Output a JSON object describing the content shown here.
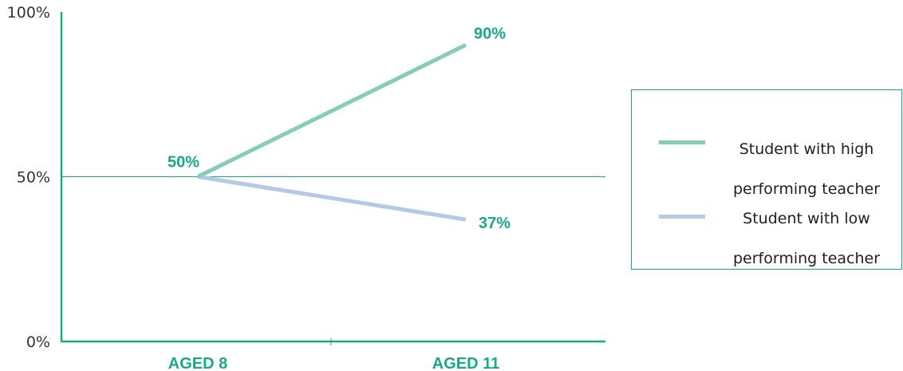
{
  "chart_data": {
    "type": "line",
    "title": "",
    "xlabel": "",
    "ylabel": "",
    "categories": [
      "AGED 8",
      "AGED 11"
    ],
    "ylim": [
      0,
      100
    ],
    "y_ticks": [
      "0%",
      "50%",
      "100%"
    ],
    "reference_line": 50,
    "series": [
      {
        "name": "Student with high performing teacher",
        "values": [
          50,
          90
        ],
        "color": "#85cdb8"
      },
      {
        "name": "Student with low performing teacher",
        "values": [
          50,
          37
        ],
        "color": "#b3c9e6"
      }
    ],
    "data_labels": [
      {
        "text": "50%",
        "category": "AGED 8",
        "value": 50
      },
      {
        "text": "90%",
        "category": "AGED 11",
        "value": 90
      },
      {
        "text": "37%",
        "category": "AGED 11",
        "value": 37
      }
    ],
    "legend": {
      "position": "right",
      "items": [
        {
          "line1": "Student with high",
          "line2": "performing teacher"
        },
        {
          "line1": "Student with low",
          "line2": "performing teacher"
        }
      ]
    },
    "colors": {
      "axis": "#1aa887",
      "label": "#1aa887",
      "tick_text": "#333333"
    }
  }
}
